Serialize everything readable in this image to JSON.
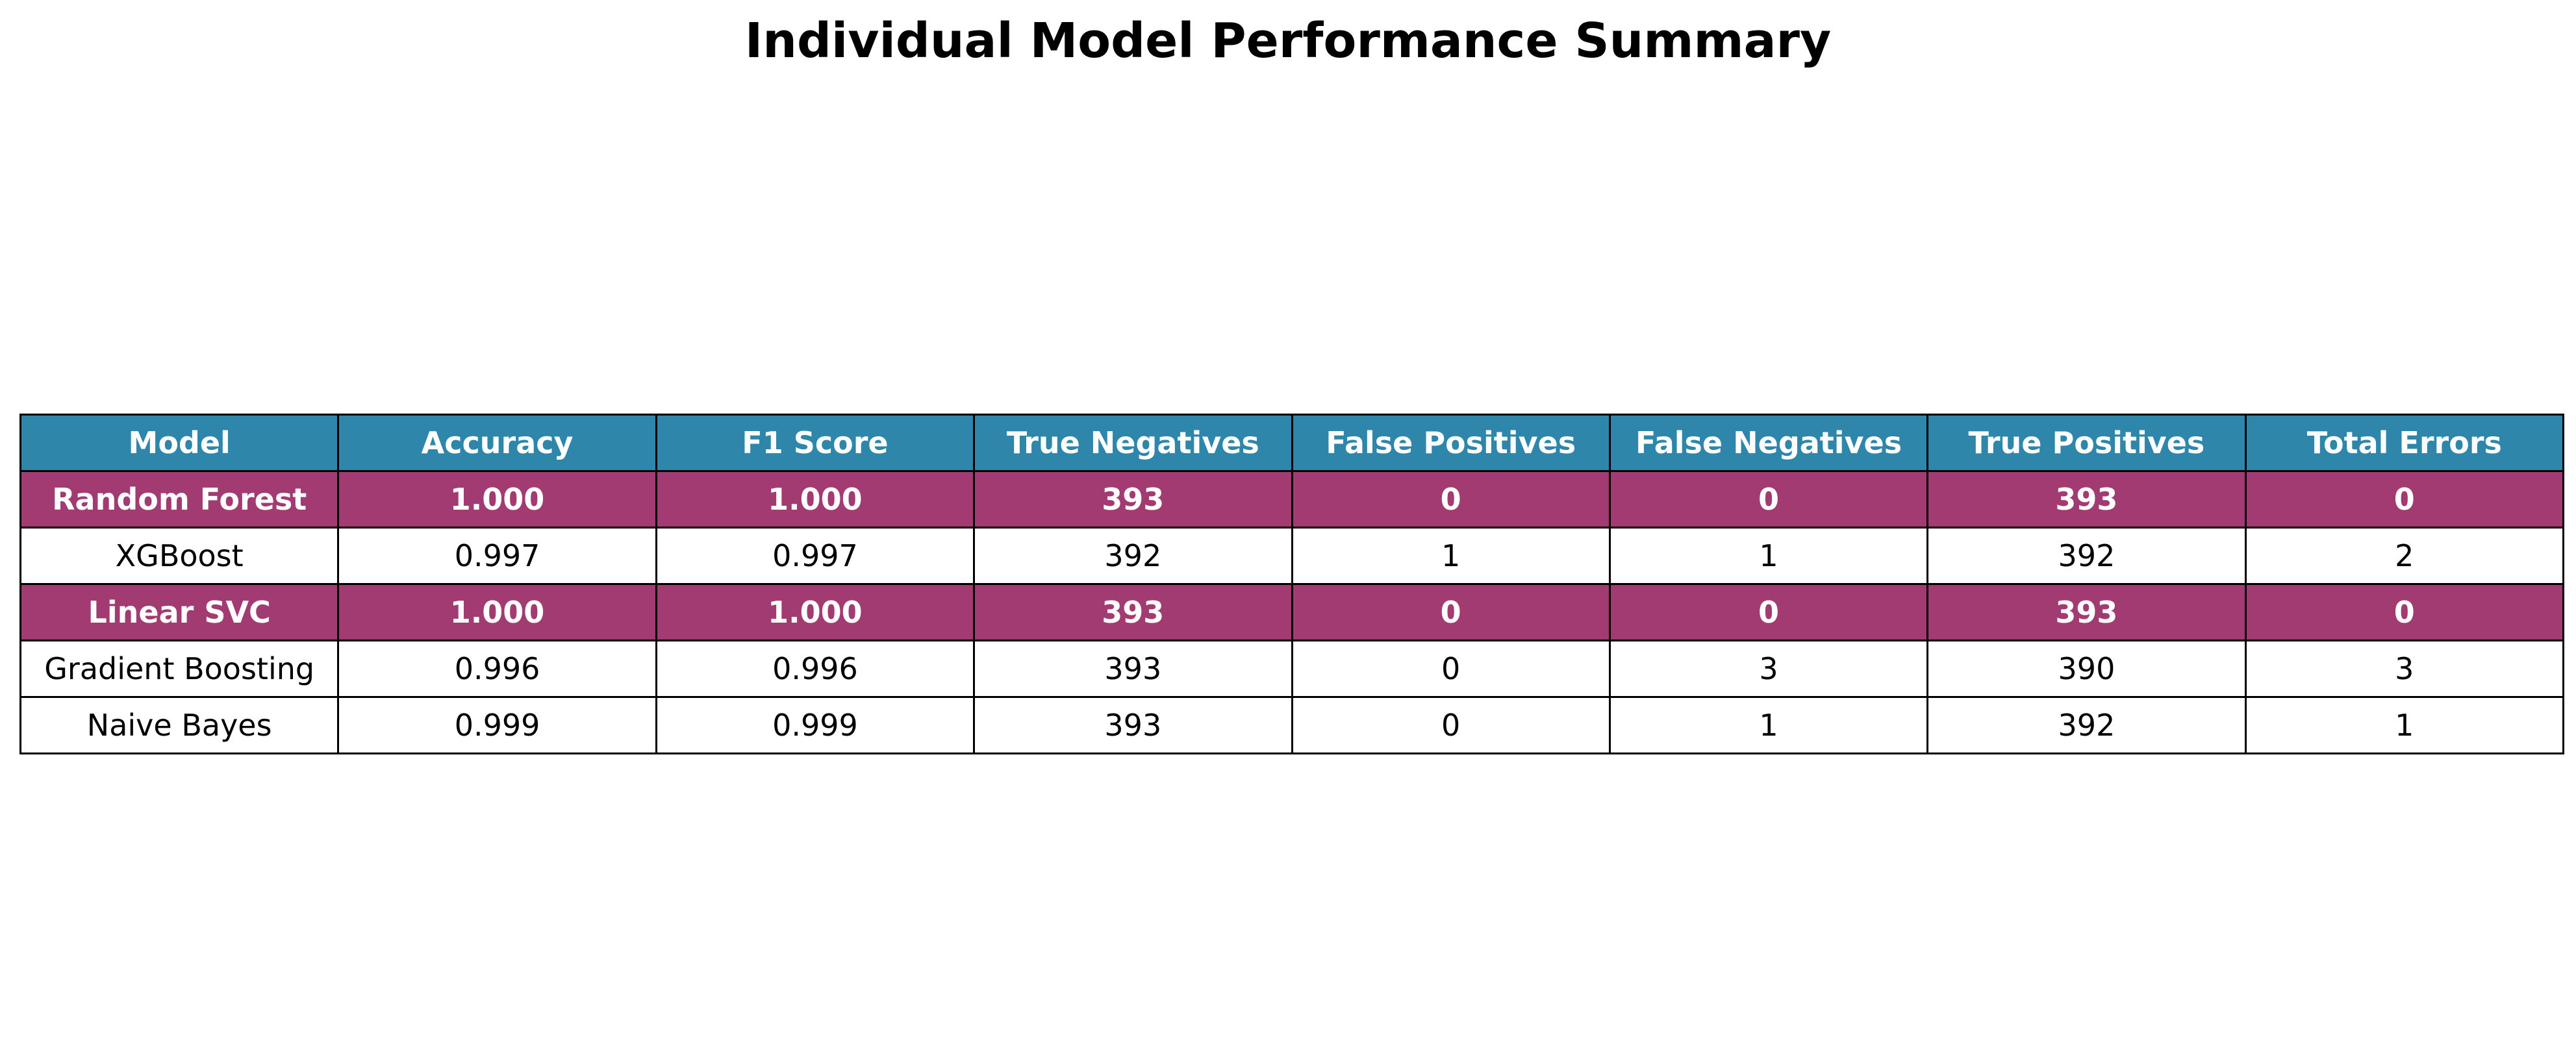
{
  "chart_data": {
    "type": "table",
    "title": "Individual Model Performance Summary",
    "columns": [
      "Model",
      "Accuracy",
      "F1 Score",
      "True Negatives",
      "False Positives",
      "False Negatives",
      "True Positives",
      "Total Errors"
    ],
    "rows": [
      {
        "cells": [
          "Random Forest",
          "1.000",
          "1.000",
          "393",
          "0",
          "0",
          "393",
          "0"
        ],
        "highlight": true
      },
      {
        "cells": [
          "XGBoost",
          "0.997",
          "0.997",
          "392",
          "1",
          "1",
          "392",
          "2"
        ],
        "highlight": false
      },
      {
        "cells": [
          "Linear SVC",
          "1.000",
          "1.000",
          "393",
          "0",
          "0",
          "393",
          "0"
        ],
        "highlight": true
      },
      {
        "cells": [
          "Gradient Boosting",
          "0.996",
          "0.996",
          "393",
          "0",
          "3",
          "390",
          "3"
        ],
        "highlight": false
      },
      {
        "cells": [
          "Naive Bayes",
          "0.999",
          "0.999",
          "393",
          "0",
          "1",
          "392",
          "1"
        ],
        "highlight": false
      }
    ]
  },
  "colors": {
    "header_bg": "#2E86AB",
    "highlight_bg": "#A23B72",
    "normal_bg": "#FFFFFF"
  }
}
